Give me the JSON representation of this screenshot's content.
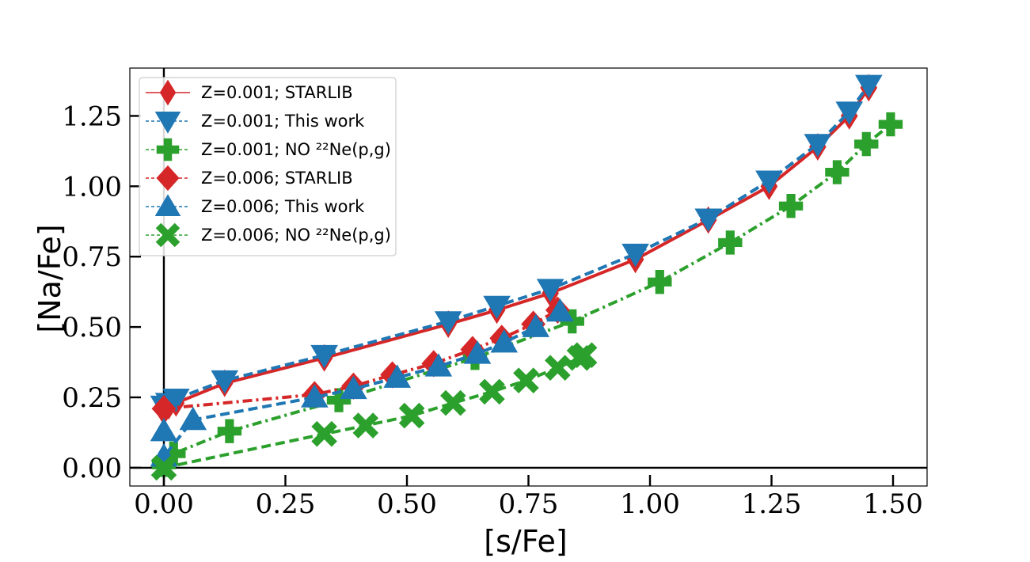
{
  "chart_data": {
    "type": "line",
    "xlabel": "[s/Fe]",
    "ylabel": "[Na/Fe]",
    "xlim": [
      -0.07,
      1.57
    ],
    "ylim": [
      -0.065,
      1.42
    ],
    "grid": false,
    "legend_position": "upper-left",
    "x_ticks": [
      "0.00",
      "0.25",
      "0.50",
      "0.75",
      "1.00",
      "1.25",
      "1.50"
    ],
    "y_ticks": [
      "0.00",
      "0.25",
      "0.50",
      "0.75",
      "1.00",
      "1.25"
    ],
    "series": [
      {
        "name": "Z=0.001; STARLIB",
        "color": "#d62728",
        "marker": "thin_diamond",
        "linestyle": "solid",
        "x": [
          0.0,
          0.01,
          0.025,
          0.125,
          0.33,
          0.585,
          0.685,
          0.795,
          0.97,
          1.12,
          1.245,
          1.345,
          1.41,
          1.45
        ],
        "y": [
          0.2,
          0.22,
          0.23,
          0.3,
          0.39,
          0.51,
          0.56,
          0.62,
          0.74,
          0.88,
          1.0,
          1.14,
          1.25,
          1.35
        ]
      },
      {
        "name": "Z=0.001; This work",
        "color": "#1f77b4",
        "marker": "triangle_down",
        "linestyle": "dashed",
        "x": [
          0.0,
          0.01,
          0.025,
          0.125,
          0.33,
          0.585,
          0.685,
          0.795,
          0.97,
          1.12,
          1.245,
          1.345,
          1.41,
          1.45
        ],
        "y": [
          0.22,
          0.23,
          0.245,
          0.31,
          0.4,
          0.52,
          0.575,
          0.635,
          0.76,
          0.885,
          1.02,
          1.15,
          1.265,
          1.36
        ]
      },
      {
        "name": "Z=0.001; NO ²²Ne(p,g)",
        "color": "#2ca02c",
        "marker": "plus",
        "linestyle": "dashdot",
        "x": [
          0.0,
          0.02,
          0.135,
          0.36,
          0.64,
          0.84,
          1.02,
          1.165,
          1.29,
          1.385,
          1.445,
          1.495
        ],
        "y": [
          0.01,
          0.05,
          0.13,
          0.24,
          0.39,
          0.52,
          0.66,
          0.8,
          0.93,
          1.05,
          1.15,
          1.22
        ]
      },
      {
        "name": "Z=0.006; STARLIB",
        "color": "#d62728",
        "marker": "diamond",
        "linestyle": "dashdot",
        "x": [
          0.0,
          0.31,
          0.39,
          0.47,
          0.555,
          0.635,
          0.695,
          0.76,
          0.81
        ],
        "y": [
          0.21,
          0.26,
          0.29,
          0.33,
          0.37,
          0.42,
          0.46,
          0.51,
          0.56
        ]
      },
      {
        "name": "Z=0.006; This work",
        "color": "#1f77b4",
        "marker": "triangle_up",
        "linestyle": "dashed",
        "x": [
          0.0,
          0.0,
          0.06,
          0.31,
          0.39,
          0.48,
          0.565,
          0.645,
          0.7,
          0.765,
          0.815
        ],
        "y": [
          0.13,
          0.04,
          0.17,
          0.25,
          0.28,
          0.32,
          0.36,
          0.405,
          0.445,
          0.5,
          0.555
        ]
      },
      {
        "name": "Z=0.006; NO ²²Ne(p,g)",
        "color": "#2ca02c",
        "marker": "x",
        "linestyle": "dashed",
        "x": [
          0.0,
          0.33,
          0.415,
          0.51,
          0.595,
          0.675,
          0.745,
          0.81,
          0.855,
          0.865
        ],
        "y": [
          0.0,
          0.12,
          0.15,
          0.185,
          0.23,
          0.27,
          0.31,
          0.355,
          0.39,
          0.4
        ]
      }
    ]
  }
}
